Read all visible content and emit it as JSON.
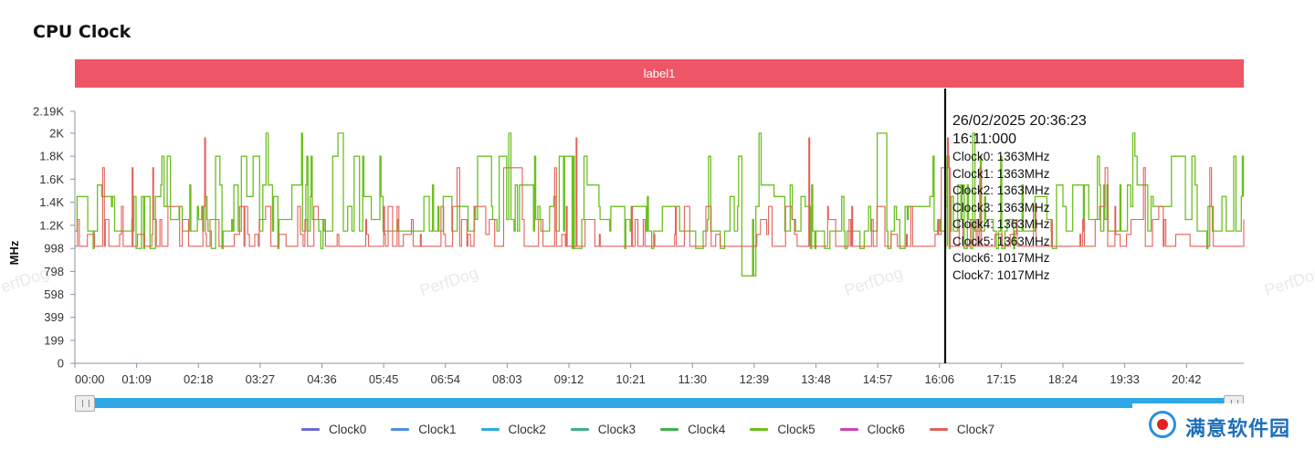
{
  "title": "CPU Clock",
  "label_bar": "label1",
  "chart_data": {
    "type": "line",
    "ylabel": "MHz",
    "ylim": [
      0,
      2190
    ],
    "y_ticks": [
      "0",
      "199",
      "399",
      "598",
      "798",
      "998",
      "1.2K",
      "1.4K",
      "1.6K",
      "1.8K",
      "2K",
      "2.19K"
    ],
    "y_tick_values": [
      0,
      199,
      399,
      598,
      798,
      998,
      1200,
      1400,
      1600,
      1800,
      2000,
      2190
    ],
    "x_ticks": [
      "00:00",
      "01:09",
      "02:18",
      "03:27",
      "04:36",
      "05:45",
      "06:54",
      "08:03",
      "09:12",
      "10:21",
      "11:30",
      "12:39",
      "13:48",
      "14:57",
      "16:06",
      "17:15",
      "18:24",
      "19:33",
      "20:42"
    ],
    "x_range_minutes": [
      0,
      1306
    ],
    "grid": false,
    "legend_position": "bottom",
    "series": [
      {
        "name": "Clock0",
        "color": "#6d6bd6",
        "hidden_behind": true
      },
      {
        "name": "Clock1",
        "color": "#4c8be8",
        "hidden_behind": true
      },
      {
        "name": "Clock2",
        "color": "#2ea8e6",
        "hidden_behind": true
      },
      {
        "name": "Clock3",
        "color": "#3fb08a",
        "hidden_behind": true
      },
      {
        "name": "Clock4",
        "color": "#3cb34a",
        "hidden_behind": true
      },
      {
        "name": "Clock5",
        "color": "#6cbf1f",
        "base": 1150,
        "levels": [
          940,
          998,
          1150,
          1250,
          1363,
          1450,
          1550,
          1650,
          1800,
          2000
        ]
      },
      {
        "name": "Clock6",
        "color": "#cc44bb",
        "hidden_behind": true
      },
      {
        "name": "Clock7",
        "color": "#e0625a",
        "base": 1017,
        "levels": [
          1017,
          1120,
          1250,
          1363,
          1550,
          1700,
          1960
        ]
      }
    ],
    "cursor": {
      "x_minutes": 966,
      "date": "26/02/2025 20:36:23",
      "time": "16:11:000",
      "rows": [
        "Clock0: 1363MHz",
        "Clock1: 1363MHz",
        "Clock2: 1363MHz",
        "Clock3: 1363MHz",
        "Clock4: 1363MHz",
        "Clock5: 1363MHz",
        "Clock6: 1017MHz",
        "Clock7: 1017MHz"
      ]
    }
  },
  "watermark": "PerfDog",
  "logo_text": "满意软件园",
  "colors": {
    "label_bar": "#ee5566",
    "slider": "#2ea8e6",
    "cursor_line": "#111111"
  }
}
